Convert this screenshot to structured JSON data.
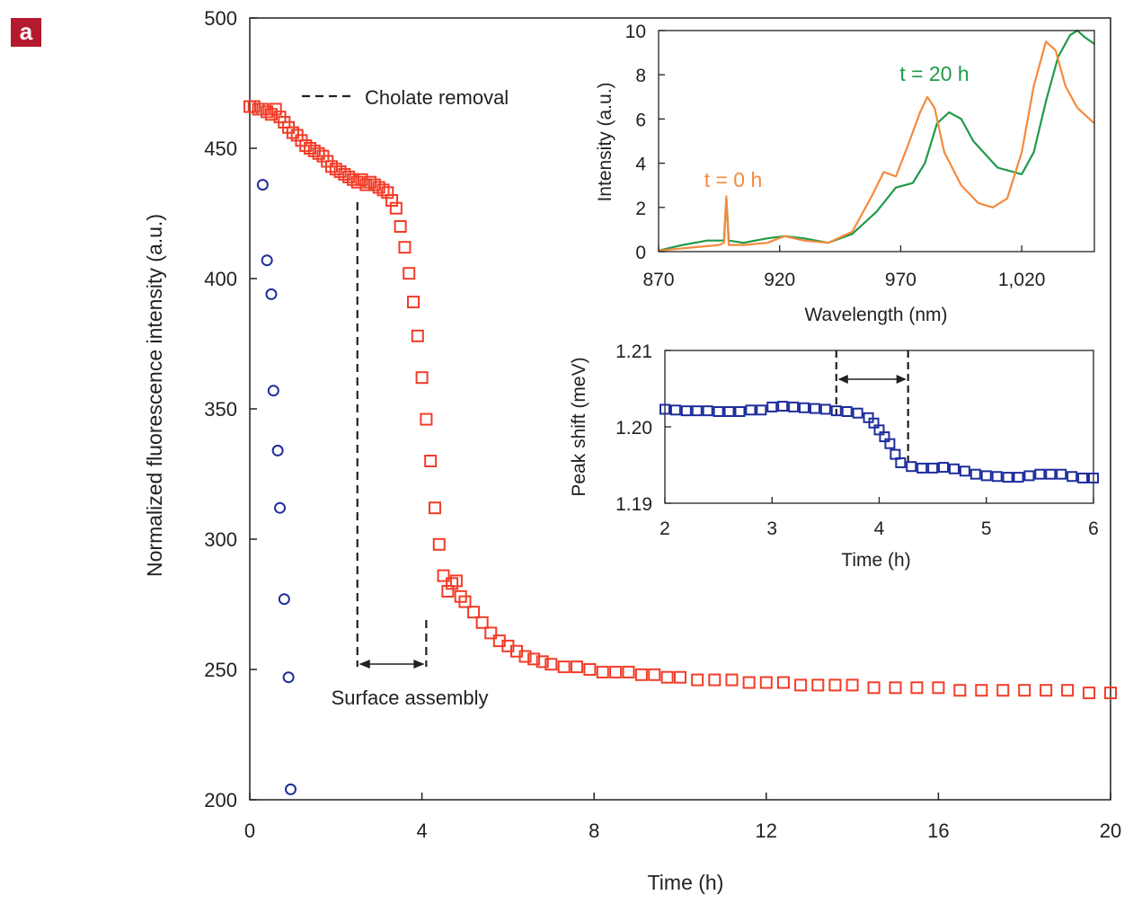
{
  "panel_label": "a",
  "colors": {
    "main_series": "#f23c28",
    "control_series": "#1e2d9b",
    "spectrum_0h": "#f58a3c",
    "spectrum_20h": "#1f9a48",
    "peak_shift": "#1e2d9b",
    "axis": "#231f20"
  },
  "chart_data": [
    {
      "type": "scatter",
      "xlabel": "Time (h)",
      "ylabel": "Normalized fluorescence intensity (a.u.)",
      "xlim": [
        0,
        20
      ],
      "ylim": [
        200,
        500
      ],
      "xticks": [
        0,
        4,
        8,
        12,
        16,
        20
      ],
      "yticks": [
        200,
        250,
        300,
        350,
        400,
        450,
        500
      ],
      "annotations": {
        "cholate": "Cholate removal",
        "assembly": "Surface assembly",
        "assembly_start": 2.5,
        "assembly_end": 4.1
      },
      "series": [
        {
          "marker": "square",
          "x": [
            0,
            0.1,
            0.2,
            0.3,
            0.4,
            0.5,
            0.6,
            0.7,
            0.8,
            0.9,
            1.0,
            1.1,
            1.2,
            1.3,
            1.4,
            1.5,
            1.6,
            1.7,
            1.8,
            1.9,
            2.0,
            2.1,
            2.2,
            2.3,
            2.4,
            2.5,
            2.6,
            2.7,
            2.8,
            2.9,
            3.0,
            3.1,
            3.2,
            3.3,
            3.4,
            3.5,
            3.6,
            3.7,
            3.8,
            3.9,
            4.0,
            4.1,
            4.2,
            4.3,
            4.4,
            4.5,
            4.6,
            4.7,
            4.8,
            4.9,
            5.0,
            5.2,
            5.4,
            5.6,
            5.8,
            6.0,
            6.2,
            6.4,
            6.6,
            6.8,
            7.0,
            7.3,
            7.6,
            7.9,
            8.2,
            8.5,
            8.8,
            9.1,
            9.4,
            9.7,
            10.0,
            10.4,
            10.8,
            11.2,
            11.6,
            12.0,
            12.4,
            12.8,
            13.2,
            13.6,
            14.0,
            14.5,
            15.0,
            15.5,
            16.0,
            16.5,
            17.0,
            17.5,
            18.0,
            18.5,
            19.0,
            19.5,
            20.0
          ],
          "y": [
            466,
            466,
            465,
            465,
            464,
            463,
            465,
            462,
            460,
            458,
            456,
            455,
            453,
            451,
            450,
            449,
            448,
            447,
            445,
            443,
            442,
            441,
            440,
            439,
            438,
            437,
            438,
            436,
            437,
            436,
            435,
            434,
            433,
            430,
            427,
            420,
            412,
            402,
            391,
            378,
            362,
            346,
            330,
            312,
            298,
            286,
            280,
            283,
            284,
            278,
            276,
            272,
            268,
            264,
            261,
            259,
            257,
            255,
            254,
            253,
            252,
            251,
            251,
            250,
            249,
            249,
            249,
            248,
            248,
            247,
            247,
            246,
            246,
            246,
            245,
            245,
            245,
            244,
            244,
            244,
            244,
            243,
            243,
            243,
            243,
            242,
            242,
            242,
            242,
            242,
            242,
            241,
            241
          ]
        },
        {
          "marker": "circle",
          "x": [
            0.3,
            0.4,
            0.5,
            0.55,
            0.65,
            0.7,
            0.8,
            0.9,
            0.95
          ],
          "y": [
            436,
            407,
            394,
            357,
            334,
            312,
            277,
            247,
            204
          ]
        }
      ]
    },
    {
      "type": "line",
      "xlabel": "Wavelength (nm)",
      "ylabel": "Intensity (a.u.)",
      "xlim": [
        870,
        1050
      ],
      "ylim": [
        0,
        10
      ],
      "xticks": [
        870,
        920,
        970,
        1020
      ],
      "xtick_labels": [
        "870",
        "920",
        "970",
        "1,020"
      ],
      "yticks": [
        0,
        2,
        4,
        6,
        8,
        10
      ],
      "series": [
        {
          "name": "t = 0 h",
          "x": [
            870,
            880,
            890,
            895,
            897,
            898,
            899,
            905,
            915,
            922,
            930,
            940,
            950,
            958,
            963,
            968,
            973,
            978,
            981,
            984,
            988,
            995,
            1002,
            1008,
            1014,
            1020,
            1025,
            1030,
            1034,
            1038,
            1043,
            1050
          ],
          "y": [
            0.05,
            0.15,
            0.25,
            0.3,
            0.4,
            2.5,
            0.3,
            0.3,
            0.4,
            0.7,
            0.5,
            0.4,
            0.9,
            2.5,
            3.6,
            3.4,
            4.8,
            6.3,
            7.0,
            6.5,
            4.5,
            3.0,
            2.2,
            2.0,
            2.4,
            4.5,
            7.5,
            9.5,
            9.1,
            7.5,
            6.5,
            5.8
          ]
        },
        {
          "name": "t = 20 h",
          "x": [
            870,
            880,
            890,
            895,
            897,
            898,
            899,
            905,
            915,
            922,
            930,
            940,
            950,
            960,
            968,
            975,
            980,
            985,
            990,
            995,
            1000,
            1010,
            1020,
            1025,
            1030,
            1035,
            1040,
            1043,
            1046,
            1050
          ],
          "y": [
            0.05,
            0.3,
            0.5,
            0.5,
            0.5,
            2.4,
            0.5,
            0.4,
            0.6,
            0.7,
            0.6,
            0.4,
            0.8,
            1.8,
            2.9,
            3.1,
            4.0,
            5.8,
            6.3,
            6.0,
            5.0,
            3.8,
            3.5,
            4.5,
            6.8,
            8.8,
            9.8,
            10.0,
            9.7,
            9.4
          ]
        }
      ]
    },
    {
      "type": "scatter",
      "xlabel": "Time (h)",
      "ylabel": "Peak shift (meV)",
      "xlim": [
        2,
        6
      ],
      "ylim": [
        1.19,
        1.21
      ],
      "xticks": [
        2,
        3,
        4,
        5,
        6
      ],
      "yticks": [
        1.19,
        1.2,
        1.21
      ],
      "ytick_labels": [
        "1.19",
        "1.20",
        "1.21"
      ],
      "annotations": {
        "interval_start": 3.6,
        "interval_end": 4.27
      },
      "series": [
        {
          "marker": "square",
          "x": [
            2.0,
            2.1,
            2.2,
            2.3,
            2.4,
            2.5,
            2.6,
            2.7,
            2.8,
            2.9,
            3.0,
            3.1,
            3.2,
            3.3,
            3.4,
            3.5,
            3.6,
            3.7,
            3.8,
            3.9,
            3.95,
            4.0,
            4.05,
            4.1,
            4.15,
            4.2,
            4.3,
            4.4,
            4.5,
            4.6,
            4.7,
            4.8,
            4.9,
            5.0,
            5.1,
            5.2,
            5.3,
            5.4,
            5.5,
            5.6,
            5.7,
            5.8,
            5.9,
            6.0
          ],
          "y": [
            1.2023,
            1.2022,
            1.2021,
            1.2021,
            1.2021,
            1.202,
            1.202,
            1.202,
            1.2022,
            1.2022,
            1.2026,
            1.2027,
            1.2026,
            1.2025,
            1.2024,
            1.2023,
            1.2021,
            1.202,
            1.2018,
            1.2012,
            1.2005,
            1.1996,
            1.1987,
            1.1978,
            1.1964,
            1.1953,
            1.1948,
            1.1946,
            1.1946,
            1.1947,
            1.1945,
            1.1942,
            1.1938,
            1.1936,
            1.1935,
            1.1934,
            1.1934,
            1.1936,
            1.1938,
            1.1938,
            1.1938,
            1.1935,
            1.1933,
            1.1933
          ]
        }
      ]
    }
  ]
}
